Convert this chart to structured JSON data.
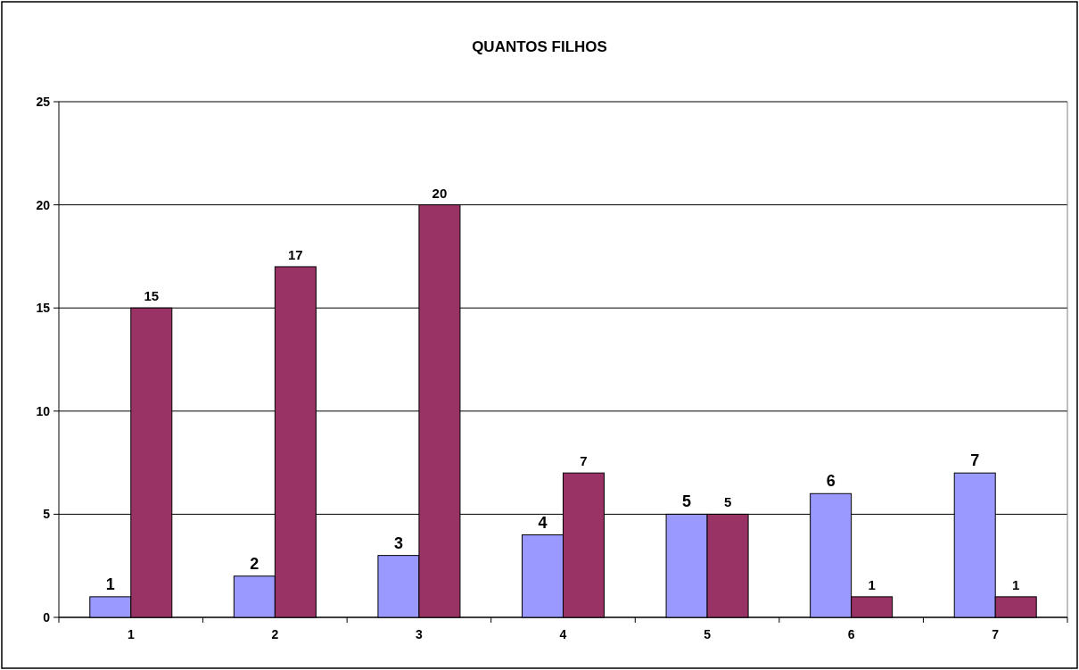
{
  "chart_data": {
    "type": "bar",
    "title": "QUANTOS FILHOS",
    "categories": [
      "1",
      "2",
      "3",
      "4",
      "5",
      "6",
      "7"
    ],
    "series": [
      {
        "color": "#9999ff",
        "values": [
          1,
          2,
          3,
          4,
          5,
          6,
          7
        ]
      },
      {
        "color": "#993366",
        "values": [
          15,
          17,
          20,
          7,
          5,
          1,
          1
        ]
      }
    ],
    "ylim": [
      0,
      25
    ],
    "yticks": [
      0,
      5,
      10,
      15,
      20,
      25
    ],
    "grid": "y",
    "data_labels": true
  }
}
